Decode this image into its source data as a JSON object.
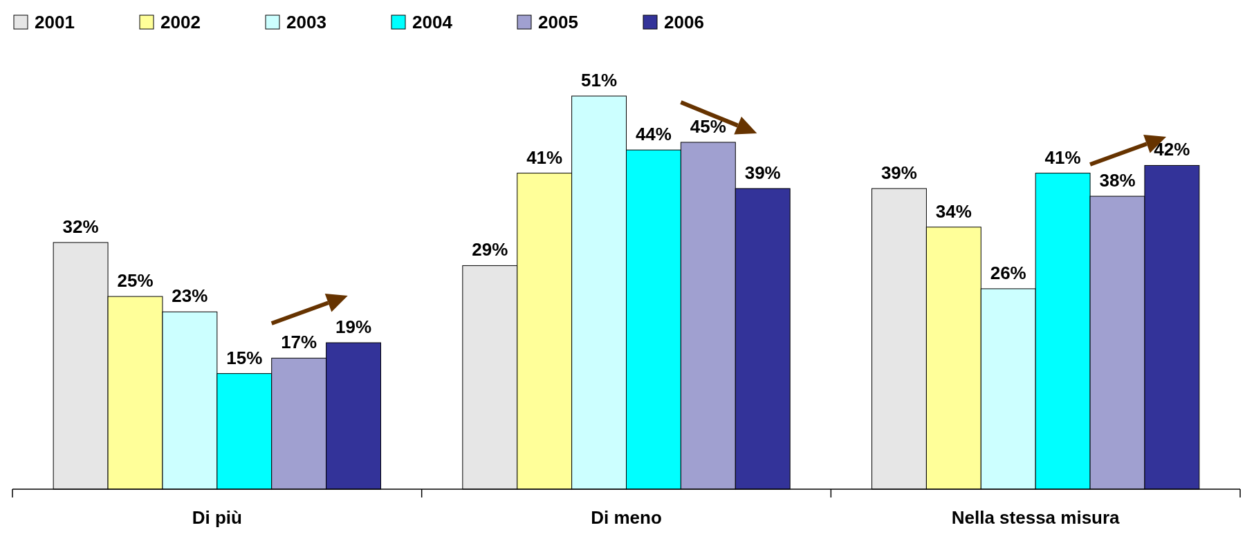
{
  "chart_data": {
    "type": "bar",
    "categories": [
      "Di più",
      "Di meno",
      "Nella stessa misura"
    ],
    "series": [
      {
        "name": "2001",
        "color": "#e6e6e6",
        "values": [
          32,
          29,
          39
        ],
        "value_labels": [
          "32%",
          "29%",
          "39%"
        ]
      },
      {
        "name": "2002",
        "color": "#ffff99",
        "values": [
          25,
          41,
          34
        ],
        "value_labels": [
          "25%",
          "41%",
          "34%"
        ]
      },
      {
        "name": "2003",
        "color": "#ccffff",
        "values": [
          23,
          51,
          26
        ],
        "value_labels": [
          "23%",
          "51%",
          "26%"
        ]
      },
      {
        "name": "2004",
        "color": "#00ffff",
        "values": [
          15,
          44,
          41
        ],
        "value_labels": [
          "15%",
          "44%",
          "41%"
        ]
      },
      {
        "name": "2005",
        "color": "#a0a0d0",
        "values": [
          17,
          45,
          38
        ],
        "value_labels": [
          "17%",
          "45%",
          "38%"
        ]
      },
      {
        "name": "2006",
        "color": "#333399",
        "values": [
          19,
          39,
          42
        ],
        "value_labels": [
          "19%",
          "39%",
          "42%"
        ]
      }
    ],
    "legend": "top left"
  }
}
